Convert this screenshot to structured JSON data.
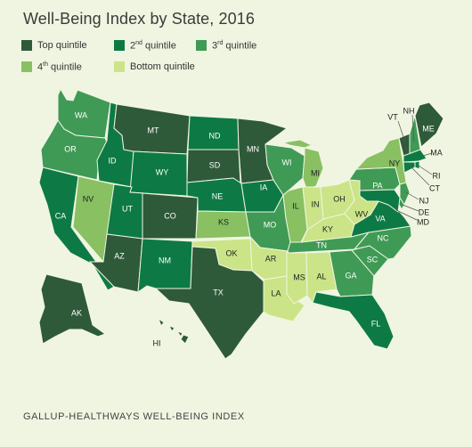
{
  "title": "Well-Being Index by State, 2016",
  "source": "GALLUP-HEALTHWAYS WELL-BEING INDEX",
  "colors": {
    "top": "#2e5a3a",
    "second": "#0d7a45",
    "third": "#3f9a55",
    "fourth": "#88c062",
    "bottom": "#cbe487"
  },
  "legend": [
    {
      "key": "top",
      "label": "Top quintile"
    },
    {
      "key": "second",
      "label_num": "2",
      "label_sup": "nd",
      "label_rest": " quintile"
    },
    {
      "key": "third",
      "label_num": "3",
      "label_sup": "rd",
      "label_rest": " quintile"
    },
    {
      "key": "fourth",
      "label_num": "4",
      "label_sup": "th",
      "label_rest": " quintile"
    },
    {
      "key": "bottom",
      "label": "Bottom quintile"
    }
  ],
  "states": [
    {
      "abbr": "WA",
      "quintile": "third"
    },
    {
      "abbr": "OR",
      "quintile": "third"
    },
    {
      "abbr": "CA",
      "quintile": "second"
    },
    {
      "abbr": "NV",
      "quintile": "fourth"
    },
    {
      "abbr": "ID",
      "quintile": "second"
    },
    {
      "abbr": "MT",
      "quintile": "top"
    },
    {
      "abbr": "WY",
      "quintile": "second"
    },
    {
      "abbr": "UT",
      "quintile": "second"
    },
    {
      "abbr": "AZ",
      "quintile": "top"
    },
    {
      "abbr": "CO",
      "quintile": "top"
    },
    {
      "abbr": "NM",
      "quintile": "second"
    },
    {
      "abbr": "ND",
      "quintile": "second"
    },
    {
      "abbr": "SD",
      "quintile": "top"
    },
    {
      "abbr": "NE",
      "quintile": "second"
    },
    {
      "abbr": "KS",
      "quintile": "fourth"
    },
    {
      "abbr": "OK",
      "quintile": "bottom"
    },
    {
      "abbr": "TX",
      "quintile": "top"
    },
    {
      "abbr": "MN",
      "quintile": "top"
    },
    {
      "abbr": "IA",
      "quintile": "second"
    },
    {
      "abbr": "MO",
      "quintile": "third"
    },
    {
      "abbr": "AR",
      "quintile": "bottom"
    },
    {
      "abbr": "LA",
      "quintile": "bottom"
    },
    {
      "abbr": "WI",
      "quintile": "third"
    },
    {
      "abbr": "IL",
      "quintile": "fourth"
    },
    {
      "abbr": "MI",
      "quintile": "fourth"
    },
    {
      "abbr": "IN",
      "quintile": "bottom"
    },
    {
      "abbr": "OH",
      "quintile": "bottom"
    },
    {
      "abbr": "KY",
      "quintile": "bottom"
    },
    {
      "abbr": "TN",
      "quintile": "third"
    },
    {
      "abbr": "MS",
      "quintile": "bottom"
    },
    {
      "abbr": "AL",
      "quintile": "bottom"
    },
    {
      "abbr": "GA",
      "quintile": "third"
    },
    {
      "abbr": "FL",
      "quintile": "second"
    },
    {
      "abbr": "SC",
      "quintile": "third"
    },
    {
      "abbr": "NC",
      "quintile": "third"
    },
    {
      "abbr": "VA",
      "quintile": "second"
    },
    {
      "abbr": "WV",
      "quintile": "bottom"
    },
    {
      "abbr": "PA",
      "quintile": "third"
    },
    {
      "abbr": "NY",
      "quintile": "fourth"
    },
    {
      "abbr": "VT",
      "quintile": "top"
    },
    {
      "abbr": "NH",
      "quintile": "third"
    },
    {
      "abbr": "ME",
      "quintile": "top"
    },
    {
      "abbr": "MA",
      "quintile": "second"
    },
    {
      "abbr": "RI",
      "quintile": "second"
    },
    {
      "abbr": "CT",
      "quintile": "second"
    },
    {
      "abbr": "NJ",
      "quintile": "third"
    },
    {
      "abbr": "DE",
      "quintile": "third"
    },
    {
      "abbr": "MD",
      "quintile": "second"
    },
    {
      "abbr": "AK",
      "quintile": "top"
    },
    {
      "abbr": "HI",
      "quintile": "top"
    }
  ]
}
